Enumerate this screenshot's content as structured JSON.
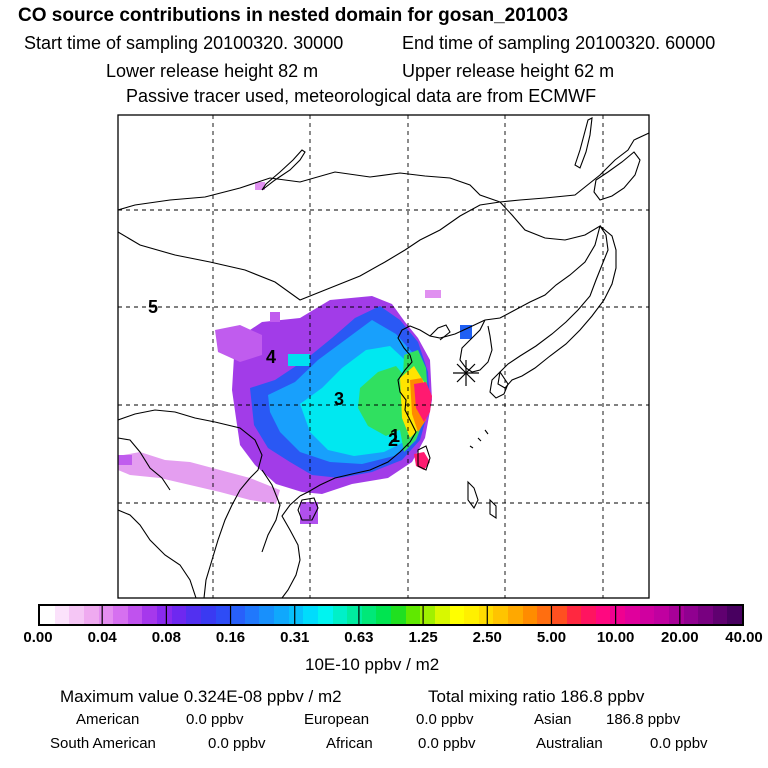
{
  "header": {
    "title": "CO  source contributions in nested domain for gosan_201003",
    "start_time": "Start time of sampling 20100320. 30000",
    "end_time": "End time of sampling 20100320. 60000",
    "lower_release": "Lower release height   82 m",
    "upper_release": "Upper release height   62 m",
    "tracer_note": "Passive tracer used, meteorological data are from ECMWF"
  },
  "map": {
    "region_labels": [
      "5",
      "4",
      "3",
      "1",
      "2"
    ],
    "receptor_marker": "asterisk-icon"
  },
  "colorbar": {
    "ticks": [
      "0.00",
      "0.04",
      "0.08",
      "0.16",
      "0.31",
      "0.63",
      "1.25",
      "2.50",
      "5.00",
      "10.00",
      "20.00",
      "40.00"
    ],
    "unit": "10E-10 ppbv / m2",
    "colors": [
      "#ffffff",
      "#fbe2fb",
      "#f5c6f5",
      "#efaaf0",
      "#e48ef0",
      "#d670f0",
      "#c052ee",
      "#a638ec",
      "#8a2aee",
      "#6e28f0",
      "#5230f0",
      "#3a3af2",
      "#2e4cf6",
      "#2860fa",
      "#2078fc",
      "#1890fc",
      "#10a8fc",
      "#08c0fc",
      "#00dcfc",
      "#00f4f0",
      "#00f0c8",
      "#00eca0",
      "#00e878",
      "#00e450",
      "#20e020",
      "#60e800",
      "#a0f000",
      "#d8f800",
      "#ffff00",
      "#fff000",
      "#ffdc00",
      "#ffc400",
      "#ffa800",
      "#ff8c00",
      "#ff6e10",
      "#ff5020",
      "#ff2840",
      "#ff1460",
      "#ff0880",
      "#f00090",
      "#e0009c",
      "#d000a0",
      "#c000a0",
      "#a80098",
      "#900090",
      "#780080",
      "#600070",
      "#480060"
    ]
  },
  "summary": {
    "max_value": "Maximum value  0.324E-08 ppbv / m2",
    "total_mixing": "Total mixing ratio      186.8 ppbv",
    "american_label": "American",
    "american_value": "0.0 ppbv",
    "european_label": "European",
    "european_value": "0.0 ppbv",
    "asian_label": "Asian",
    "asian_value": "186.8 ppbv",
    "south_american_label": "South American",
    "south_american_value": "0.0 ppbv",
    "african_label": "African",
    "african_value": "0.0 ppbv",
    "australian_label": "Australian",
    "australian_value": "0.0 ppbv"
  }
}
